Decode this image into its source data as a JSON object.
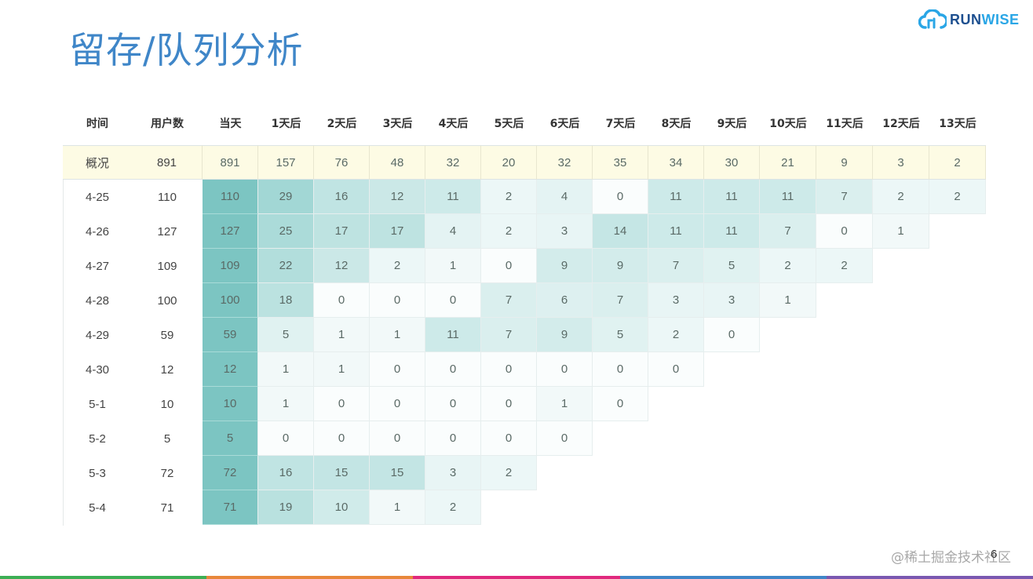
{
  "slide": {
    "title": "留存/队列分析",
    "logo": {
      "icon": "cloud-logo-icon",
      "text_a": "RUN",
      "text_b": "WISE"
    },
    "watermark": "@稀土掘金技术社区",
    "page_number": "6",
    "bottom_bar_colors": [
      "#3cae54",
      "#e8873a",
      "#e0287e",
      "#3f86c8",
      "#7a58b0"
    ]
  },
  "chart_data": {
    "type": "heatmap",
    "title": "留存/队列分析",
    "columns": [
      "时间",
      "用户数",
      "当天",
      "1天后",
      "2天后",
      "3天后",
      "4天后",
      "5天后",
      "6天后",
      "7天后",
      "8天后",
      "9天后",
      "10天后",
      "11天后",
      "12天后",
      "13天后"
    ],
    "summary": {
      "label": "概况",
      "users": 891,
      "values": [
        891,
        157,
        76,
        48,
        32,
        20,
        32,
        35,
        34,
        30,
        21,
        9,
        3,
        2
      ]
    },
    "rows": [
      {
        "date": "4-25",
        "users": 110,
        "values": [
          110,
          29,
          16,
          12,
          11,
          2,
          4,
          0,
          11,
          11,
          11,
          7,
          2,
          2
        ]
      },
      {
        "date": "4-26",
        "users": 127,
        "values": [
          127,
          25,
          17,
          17,
          4,
          2,
          3,
          14,
          11,
          11,
          7,
          0,
          1
        ]
      },
      {
        "date": "4-27",
        "users": 109,
        "values": [
          109,
          22,
          12,
          2,
          1,
          0,
          9,
          9,
          7,
          5,
          2,
          2
        ]
      },
      {
        "date": "4-28",
        "users": 100,
        "values": [
          100,
          18,
          0,
          0,
          0,
          7,
          6,
          7,
          3,
          3,
          1
        ]
      },
      {
        "date": "4-29",
        "users": 59,
        "values": [
          59,
          5,
          1,
          1,
          11,
          7,
          9,
          5,
          2,
          0
        ]
      },
      {
        "date": "4-30",
        "users": 12,
        "values": [
          12,
          1,
          1,
          0,
          0,
          0,
          0,
          0,
          0
        ]
      },
      {
        "date": "5-1",
        "users": 10,
        "values": [
          10,
          1,
          0,
          0,
          0,
          0,
          1,
          0
        ]
      },
      {
        "date": "5-2",
        "users": 5,
        "values": [
          5,
          0,
          0,
          0,
          0,
          0,
          0
        ]
      },
      {
        "date": "5-3",
        "users": 72,
        "values": [
          72,
          16,
          15,
          15,
          3,
          2
        ]
      },
      {
        "date": "5-4",
        "users": 71,
        "values": [
          71,
          19,
          10,
          1,
          2
        ]
      }
    ],
    "colors": {
      "day0": "#7cc5c2",
      "max": "#a6d8d6",
      "min": "#fafdfd",
      "summary_bg": "#fdfbe4"
    }
  }
}
